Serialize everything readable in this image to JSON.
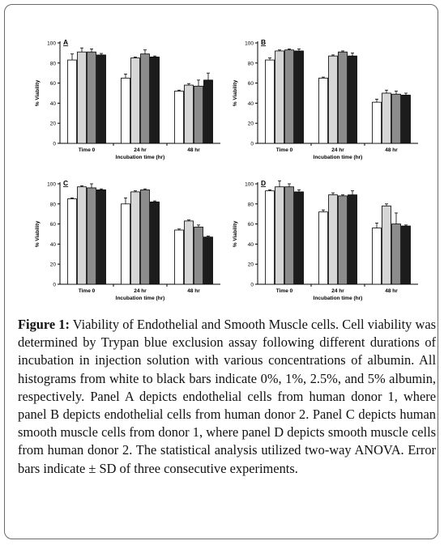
{
  "caption": {
    "label": "Figure 1:",
    "text": "Viability of Endothelial and Smooth Muscle cells. Cell viability was determined by Trypan blue exclusion assay following different durations of incubation in injection solution with various concentrations of albumin. All histograms from white to black bars indicate 0%, 1%, 2.5%, and 5% albumin, respectively. Panel A depicts endothelial cells from human donor 1, where panel B depicts endothelial cells from human donor 2. Panel C depicts human smooth muscle cells from donor 1, where panel D depicts smooth muscle cells from human donor 2. The statistical analysis utilized two-way ANOVA. Error bars indicate ± SD of three consecutive experiments."
  },
  "colors": [
    "#ffffff",
    "#d6d6d6",
    "#8c8c8c",
    "#1c1c1c"
  ],
  "chart_data": [
    {
      "type": "bar",
      "panel_label": "A",
      "categories": [
        "Time 0",
        "24 hr",
        "48 hr"
      ],
      "xlabel": "Incubation time (hr)",
      "ylabel": "% Viability",
      "ylim": [
        0,
        100
      ],
      "yticks": [
        0,
        20,
        40,
        60,
        80,
        100
      ],
      "series": [
        {
          "values": [
            83,
            65,
            52
          ],
          "errors": [
            6,
            4,
            1
          ]
        },
        {
          "values": [
            91,
            85,
            58
          ],
          "errors": [
            4,
            1,
            1.5
          ]
        },
        {
          "values": [
            91,
            89,
            57
          ],
          "errors": [
            3,
            4,
            6
          ]
        },
        {
          "values": [
            88,
            86,
            63
          ],
          "errors": [
            1.5,
            1,
            7
          ]
        }
      ]
    },
    {
      "type": "bar",
      "panel_label": "B",
      "categories": [
        "Time 0",
        "24 hr",
        "48 hr"
      ],
      "xlabel": "Incubation time (hr)",
      "ylabel": "% Viability",
      "ylim": [
        0,
        100
      ],
      "yticks": [
        0,
        20,
        40,
        60,
        80,
        100
      ],
      "series": [
        {
          "values": [
            83,
            65,
            41
          ],
          "errors": [
            2,
            1,
            3
          ]
        },
        {
          "values": [
            92,
            87,
            50
          ],
          "errors": [
            1,
            1,
            3
          ]
        },
        {
          "values": [
            93,
            91,
            49
          ],
          "errors": [
            1,
            1,
            3
          ]
        },
        {
          "values": [
            92,
            87,
            48
          ],
          "errors": [
            2,
            3,
            2
          ]
        }
      ]
    },
    {
      "type": "bar",
      "panel_label": "C",
      "categories": [
        "Time 0",
        "24 hr",
        "48 hr"
      ],
      "xlabel": "Incubation time (hr)",
      "ylabel": "% Viability",
      "ylim": [
        0,
        100
      ],
      "yticks": [
        0,
        20,
        40,
        60,
        80,
        100
      ],
      "series": [
        {
          "values": [
            85,
            80,
            54
          ],
          "errors": [
            1,
            6,
            1
          ]
        },
        {
          "values": [
            97,
            92,
            63
          ],
          "errors": [
            1,
            1,
            1
          ]
        },
        {
          "values": [
            96,
            94,
            57
          ],
          "errors": [
            4,
            1,
            2
          ]
        },
        {
          "values": [
            94,
            82,
            47
          ],
          "errors": [
            1,
            1,
            1
          ]
        }
      ]
    },
    {
      "type": "bar",
      "panel_label": "D",
      "categories": [
        "Time 0",
        "24 hr",
        "48 hr"
      ],
      "xlabel": "Incubation time (hr)",
      "ylabel": "% Viability",
      "ylim": [
        0,
        100
      ],
      "yticks": [
        0,
        20,
        40,
        60,
        80,
        100
      ],
      "series": [
        {
          "values": [
            93,
            72,
            56
          ],
          "errors": [
            1,
            2,
            5
          ]
        },
        {
          "values": [
            97,
            89,
            78
          ],
          "errors": [
            6,
            2,
            2
          ]
        },
        {
          "values": [
            97,
            88,
            60
          ],
          "errors": [
            3,
            1,
            11
          ]
        },
        {
          "values": [
            92,
            89,
            58
          ],
          "errors": [
            2,
            4,
            1
          ]
        }
      ]
    }
  ]
}
